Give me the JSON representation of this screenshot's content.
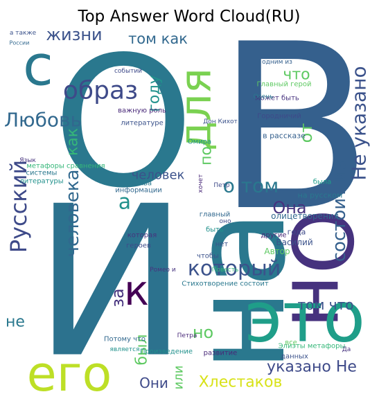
{
  "chart_data": {
    "type": "wordcloud",
    "title": "Top Answer Word Cloud(RU)",
    "words": [
      "В",
      "О",
      "И",
      "на",
      "Он",
      "это",
      "с",
      "для",
      "его",
      "к",
      "Не указано",
      "что",
      "от",
      "образ",
      "жизни",
      "том как",
      "году",
      "Любовь",
      "как",
      "Русский",
      "человека",
      "человек",
      "по",
      "о том",
      "состоит из",
      "Она",
      "который",
      "а",
      "за",
      "был",
      "не",
      "но",
      "том что",
      "указано Не",
      "Хлестаков",
      "Они",
      "или",
      "а также",
      "России",
      "событий",
      "Произведение",
      "Ромео и",
      "Петра",
      "Дон Кихот",
      "Москва",
      "Элиэты метафоры",
      "развитие",
      "Потому что",
      "является",
      "может быть",
      "в рассказе",
      "Городничий",
      "Осень",
      "Главный герой",
      "метафоры сравнения",
      "литературе",
      "важную роль",
      "информации",
      "системы",
      "Язык",
      "героев",
      "Омира",
      "нет",
      "Василий",
      "олицетворения",
      "Автор",
      "года",
      "на русском",
      "была",
      "Повесть",
      "оно",
      "другие",
      "быть",
      "все",
      "данных",
      "главный",
      "Стихотворение состоит",
      "одним из",
      "которая",
      "литературы",
      "Петр",
      "Да",
      "чтобы",
      "хочет"
    ],
    "colors": [
      "#35608d",
      "#2a788e",
      "#2c728e",
      "#2a788e",
      "#46327e",
      "#1f9e89",
      "#2a788e",
      "#7ad151",
      "#bddf26",
      "#440154",
      "#3b528b",
      "#5ec962",
      "#5ec962",
      "#3e4a89",
      "#3b528b",
      "#31688e",
      "#21918c",
      "#31688e",
      "#35b779",
      "#3e4a89",
      "#31688e",
      "#3b528b",
      "#5ec962",
      "#2a788e",
      "#35608d",
      "#46327e",
      "#3b528b",
      "#21918c",
      "#46327e",
      "#5ec962",
      "#2a788e",
      "#5ec962",
      "#3b528b",
      "#3e4a89",
      "#d8e219",
      "#3e4a89",
      "#5ec962",
      "#3b528b",
      "#31688e",
      "#3e4a89",
      "#21918c",
      "#46327e",
      "#482878",
      "#3b528b",
      "#2a788e",
      "#35b779",
      "#482878",
      "#31688e",
      "#21918c",
      "#46327e",
      "#35608d",
      "#3e4a89",
      "#2a788e",
      "#5ec962",
      "#35b779",
      "#3b528b",
      "#482878",
      "#31688e",
      "#2a788e",
      "#46327e",
      "#3e4a89",
      "#21918c",
      "#3b528b",
      "#3b528b",
      "#31688e",
      "#5ec962",
      "#3e4a89",
      "#2a788e",
      "#1f9e89",
      "#35b779",
      "#3e4a89",
      "#482878",
      "#21918c",
      "#5ec962",
      "#3b528b",
      "#31688e",
      "#2a788e",
      "#35608d",
      "#46327e",
      "#21918c",
      "#3e4a89",
      "#46327e",
      "#3b528b",
      "#482878"
    ]
  }
}
